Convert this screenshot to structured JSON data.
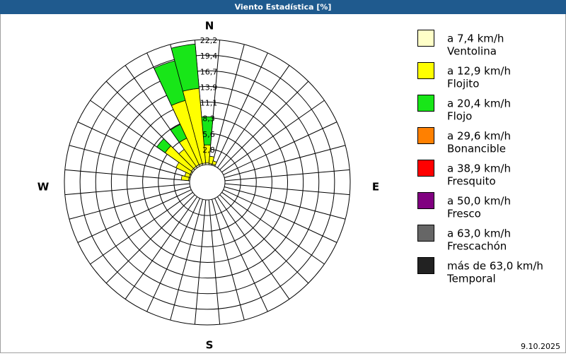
{
  "chart_data": {
    "type": "windrose",
    "title": "Viento Estadística [%]",
    "date": "9.10.2025",
    "compass": [
      "N",
      "E",
      "S",
      "W"
    ],
    "directions_deg": [
      0,
      10,
      20,
      30,
      40,
      50,
      60,
      70,
      80,
      90,
      100,
      110,
      120,
      130,
      140,
      150,
      160,
      170,
      180,
      190,
      200,
      210,
      220,
      230,
      240,
      250,
      260,
      270,
      280,
      290,
      300,
      310,
      320,
      330,
      340,
      350
    ],
    "rlim": [
      0,
      22.2
    ],
    "rticks": [
      {
        "value": 2.775,
        "label": "2,8"
      },
      {
        "value": 5.55,
        "label": "5,6"
      },
      {
        "value": 8.325,
        "label": "8,3"
      },
      {
        "value": 11.1,
        "label": "11,1"
      },
      {
        "value": 13.875,
        "label": "13,9"
      },
      {
        "value": 16.65,
        "label": "16,7"
      },
      {
        "value": 19.425,
        "label": "19,4"
      },
      {
        "value": 22.2,
        "label": "22,2"
      }
    ],
    "series": [
      {
        "name": "a 7,4 km/h",
        "label": "Ventolina",
        "color": "#ffffc8",
        "values": [
          0.3,
          0.2,
          0.2,
          0,
          0,
          0,
          0,
          0,
          0,
          0,
          0,
          0,
          0,
          0,
          0,
          0,
          0,
          0,
          0,
          0,
          0,
          0,
          0,
          0,
          0,
          0,
          0,
          0,
          0.2,
          0.2,
          0.2,
          0.3,
          0.3,
          0.3,
          0.3,
          0.3
        ]
      },
      {
        "name": "a 12,9 km/h",
        "label": "Flojito",
        "color": "#ffff00",
        "values": [
          3.2,
          1.3,
          0.6,
          0,
          0,
          0,
          0,
          0,
          0,
          0,
          0,
          0,
          0,
          0,
          0,
          0,
          0,
          0,
          0,
          0,
          0,
          0,
          0,
          0,
          0,
          0,
          0,
          0,
          1.3,
          0.8,
          2.8,
          5.7,
          3.7,
          5.2,
          11.6,
          13.3
        ]
      },
      {
        "name": "a 20,4 km/h",
        "label": "Flojo",
        "color": "#18e618",
        "values": [
          5.0,
          0,
          0,
          0,
          0,
          0,
          0,
          0,
          0,
          0,
          0,
          0,
          0,
          0,
          0,
          0,
          0,
          0,
          0,
          0,
          0,
          0,
          0,
          0,
          0,
          0,
          0,
          0,
          0,
          0,
          0,
          1.8,
          0,
          2.7,
          7.3,
          7.9
        ]
      },
      {
        "name": "a 29,6 km/h",
        "label": "Bonancible",
        "color": "#ff8000",
        "values": [
          0,
          0,
          0,
          0,
          0,
          0,
          0,
          0,
          0,
          0,
          0,
          0,
          0,
          0,
          0,
          0,
          0,
          0,
          0,
          0,
          0,
          0,
          0,
          0,
          0,
          0,
          0,
          0,
          0,
          0,
          0,
          0,
          0,
          0,
          0,
          0
        ]
      },
      {
        "name": "a 38,9 km/h",
        "label": "Fresquito",
        "color": "#ff0000",
        "values": [
          0,
          0,
          0,
          0,
          0,
          0,
          0,
          0,
          0,
          0,
          0,
          0,
          0,
          0,
          0,
          0,
          0,
          0,
          0,
          0,
          0,
          0,
          0,
          0,
          0,
          0,
          0,
          0,
          0,
          0,
          0,
          0,
          0,
          0,
          0,
          0
        ]
      },
      {
        "name": "a 50,0 km/h",
        "label": "Fresco",
        "color": "#800080",
        "values": [
          0,
          0,
          0,
          0,
          0,
          0,
          0,
          0,
          0,
          0,
          0,
          0,
          0,
          0,
          0,
          0,
          0,
          0,
          0,
          0,
          0,
          0,
          0,
          0,
          0,
          0,
          0,
          0,
          0,
          0,
          0,
          0,
          0,
          0,
          0,
          0
        ]
      },
      {
        "name": "a 63,0 km/h",
        "label": "Frescachón",
        "color": "#666666",
        "values": [
          0,
          0,
          0,
          0,
          0,
          0,
          0,
          0,
          0,
          0,
          0,
          0,
          0,
          0,
          0,
          0,
          0,
          0,
          0,
          0,
          0,
          0,
          0,
          0,
          0,
          0,
          0,
          0,
          0,
          0,
          0,
          0,
          0,
          0,
          0,
          0
        ]
      },
      {
        "name": "más de 63,0 km/h",
        "label": "Temporal",
        "color": "#222222",
        "values": [
          0,
          0,
          0,
          0,
          0,
          0,
          0,
          0,
          0,
          0,
          0,
          0,
          0,
          0,
          0,
          0,
          0,
          0,
          0,
          0,
          0,
          0,
          0,
          0,
          0,
          0,
          0,
          0,
          0,
          0,
          0,
          0,
          0,
          0,
          0,
          0
        ]
      }
    ]
  }
}
